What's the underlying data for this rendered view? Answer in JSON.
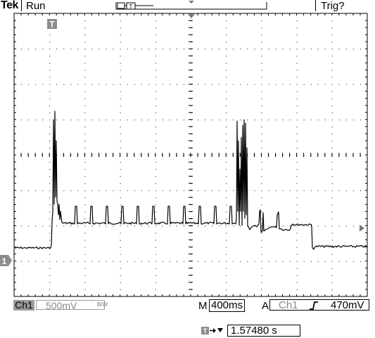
{
  "header": {
    "brand": "Tek",
    "run_state": "Run",
    "trigger_state": "Trig?"
  },
  "channel": {
    "label": "Ch1",
    "scale": "500mV",
    "bandwidth_mark": "B/W",
    "ground_marker": "1"
  },
  "timebase": {
    "mode_label": "M",
    "scale": "400ms"
  },
  "trigger": {
    "mode_label": "A",
    "source": "Ch1",
    "level": "470mV",
    "marker": "T"
  },
  "trigger_position": {
    "value": "1.57480 s"
  },
  "colors": {
    "background": "#ffffff",
    "trace": "#000000",
    "grid": "#000000",
    "badge": "#9a9a9a"
  }
}
